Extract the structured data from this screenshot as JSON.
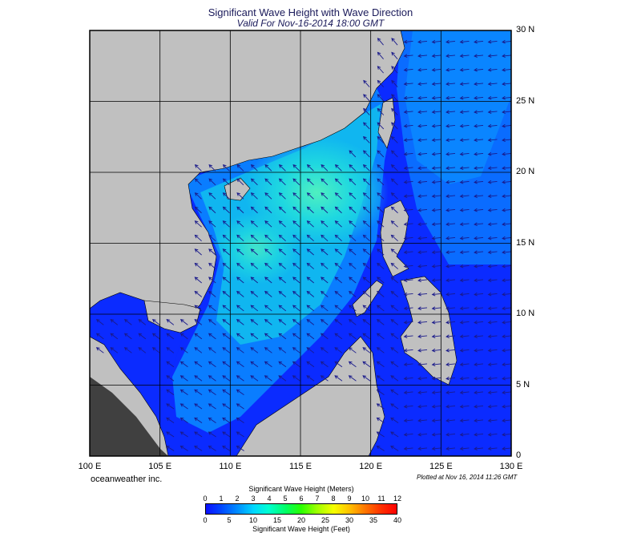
{
  "title": "Significant Wave Height with Wave Direction",
  "subtitle": "Valid For Nov-16-2014 18:00 GMT",
  "lat_labels": [
    "30 N",
    "25 N",
    "20 N",
    "15 N",
    "10 N",
    "5 N",
    "0"
  ],
  "lon_labels": [
    "100 E",
    "105 E",
    "110 E",
    "115 E",
    "120 E",
    "125 E",
    "130 E"
  ],
  "company": "oceanweather inc.",
  "plotted": "Plotted at Nov 16, 2014 11:26 GMT",
  "colorbar": {
    "meters_title": "Significant Wave Height (Meters)",
    "feet_title": "Significant Wave Height (Feet)",
    "meters_ticks": [
      "0",
      "1",
      "2",
      "3",
      "4",
      "5",
      "6",
      "7",
      "8",
      "9",
      "10",
      "11",
      "12"
    ],
    "feet_ticks": [
      "0",
      "5",
      "10",
      "15",
      "20",
      "25",
      "30",
      "35",
      "40"
    ]
  },
  "colors": {
    "land": "#c0c0c0",
    "deep_sea": "#0b1aff",
    "mid_sea": "#0a78ff",
    "high_sea": "#1fe6d6",
    "arrow": "#1a1a8a",
    "grid": "#000000"
  }
}
